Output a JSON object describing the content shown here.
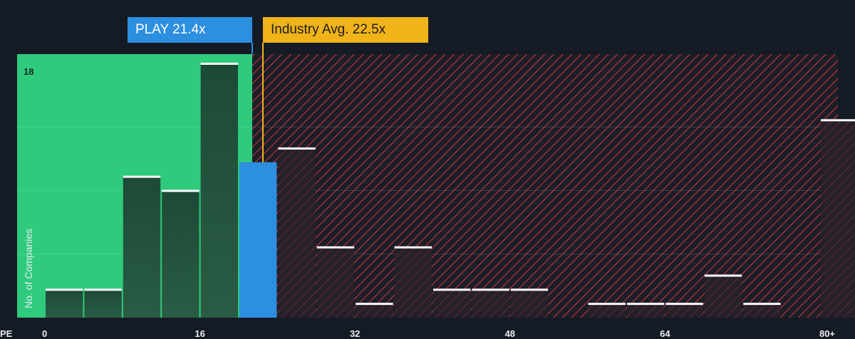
{
  "chart_data": {
    "type": "bar",
    "title": "",
    "xlabel": "PE",
    "ylabel": "No. of Companies",
    "x_ticks": [
      "0",
      "16",
      "32",
      "48",
      "64",
      "80+"
    ],
    "xlim": [
      0,
      80
    ],
    "ylim": [
      0,
      18
    ],
    "y_max_label": "18",
    "bin_width": 4,
    "bins": [
      {
        "start": 0,
        "count": 2
      },
      {
        "start": 4,
        "count": 2
      },
      {
        "start": 8,
        "count": 10
      },
      {
        "start": 12,
        "count": 9
      },
      {
        "start": 16,
        "count": 18
      },
      {
        "start": 20,
        "count": 11
      },
      {
        "start": 24,
        "count": 12
      },
      {
        "start": 28,
        "count": 5
      },
      {
        "start": 32,
        "count": 1
      },
      {
        "start": 36,
        "count": 5
      },
      {
        "start": 40,
        "count": 2
      },
      {
        "start": 44,
        "count": 2
      },
      {
        "start": 48,
        "count": 2
      },
      {
        "start": 52,
        "count": 0
      },
      {
        "start": 56,
        "count": 1
      },
      {
        "start": 60,
        "count": 1
      },
      {
        "start": 64,
        "count": 1
      },
      {
        "start": 68,
        "count": 3
      },
      {
        "start": 72,
        "count": 1
      },
      {
        "start": 76,
        "count": 0
      },
      {
        "start": 80,
        "count": 14
      }
    ],
    "company": {
      "label": "PLAY 21.4x",
      "pe": 21.4
    },
    "industry": {
      "label": "Industry Avg. 22.5x",
      "pe": 22.5
    },
    "colors": {
      "background": "#151b24",
      "undervalued_zone": "#2ecb7d",
      "overvalued_hatch": "#c3373e",
      "bar": "#1f4a37",
      "company_bar": "#2d8fe0",
      "industry_line": "#f0b31a"
    }
  }
}
